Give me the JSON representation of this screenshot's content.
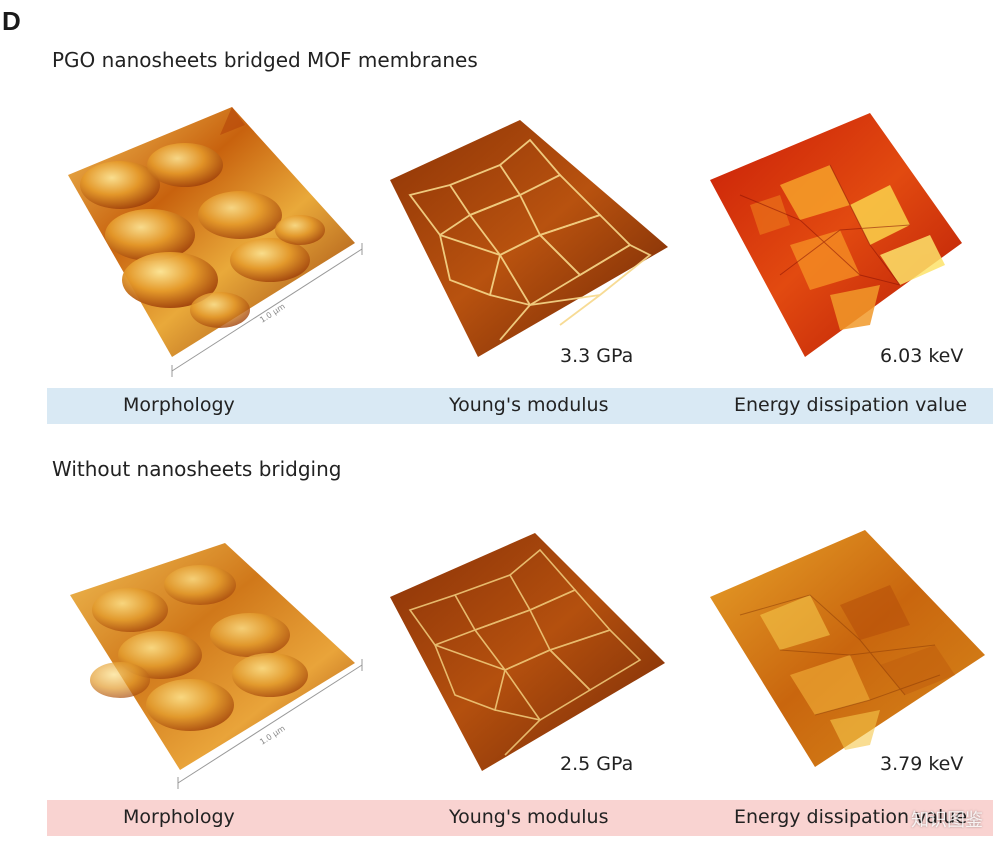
{
  "panel_letter": "D",
  "sections": [
    {
      "title": "PGO nanosheets bridged MOF membranes",
      "scale_label": "1.0 µm",
      "youngs_value": "3.3 GPa",
      "energy_value": "6.03 keV",
      "captions": [
        "Morphology",
        "Young's modulus",
        "Energy dissipation value"
      ],
      "bar_color": "#d9e9f4"
    },
    {
      "title": "Without nanosheets bridging",
      "scale_label": "1.0 µm",
      "youngs_value": "2.5 GPa",
      "energy_value": "3.79 keV",
      "captions": [
        "Morphology",
        "Young's modulus",
        "Energy dissipation value"
      ],
      "bar_color": "#f9d3d1"
    }
  ],
  "watermark": "知识图鉴"
}
